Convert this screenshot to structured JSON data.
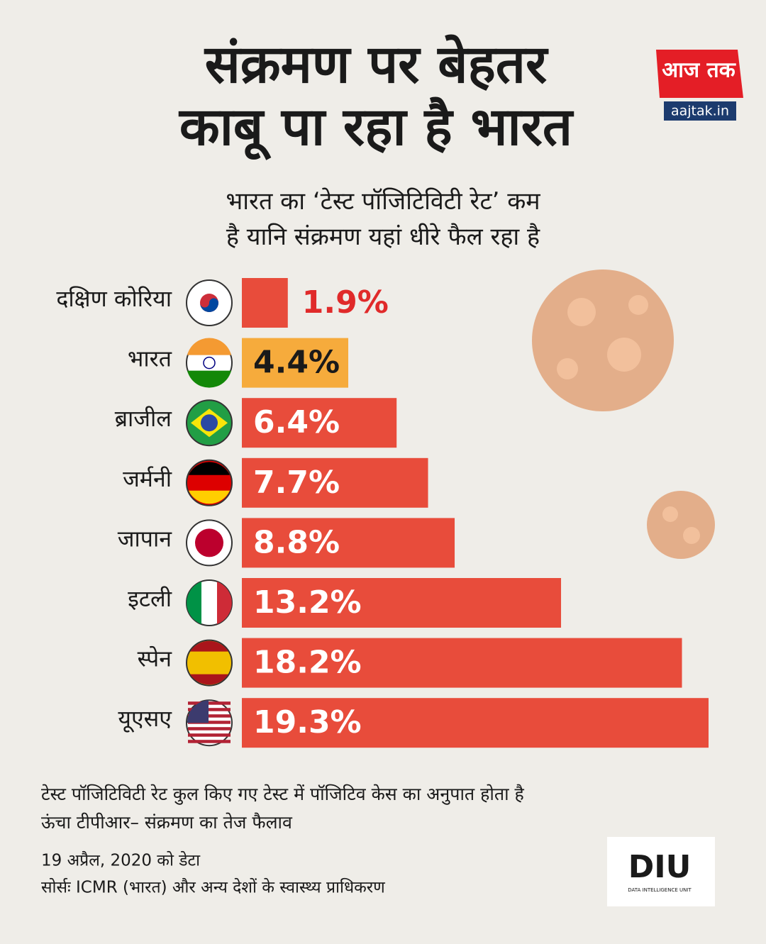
{
  "chart_data": {
    "type": "bar",
    "orientation": "horizontal",
    "title": "संक्रमण पर बेहतर काबू पा रहा है भारत",
    "subtitle": "भारत का ‘टेस्ट पॉजिटिविटी रेट’ कम है यानि संक्रमण यहां धीरे फैल रहा है",
    "categories": [
      "दक्षिण कोरिया",
      "भारत",
      "ब्राजील",
      "जर्मनी",
      "जापान",
      "इटली",
      "स्पेन",
      "यूएसए"
    ],
    "values": [
      1.9,
      4.4,
      6.4,
      7.7,
      8.8,
      13.2,
      18.2,
      19.3
    ],
    "value_labels": [
      "1.9%",
      "4.4%",
      "6.4%",
      "7.7%",
      "8.8%",
      "13.2%",
      "18.2%",
      "19.3%"
    ],
    "colors": [
      "#e84c3b",
      "#f6ab3c",
      "#e84c3b",
      "#e84c3b",
      "#e84c3b",
      "#e84c3b",
      "#e84c3b",
      "#e84c3b"
    ],
    "value_label_colors": [
      "#e02a2a",
      "#1a1a1a",
      "#ffffff",
      "#ffffff",
      "#ffffff",
      "#ffffff",
      "#ffffff",
      "#ffffff"
    ],
    "notes": [
      "टेस्ट पॉजिटिविटी रेट कुल किए गए टेस्ट में पॉजिटिव केस का अनुपात होता है",
      "ऊंचा टीपीआर– संक्रमण का तेज फैलाव"
    ],
    "date": "19 अप्रैल, 2020 को डेटा",
    "source": "सोर्सः ICMR (भारत) और अन्य देशों के स्वास्थ्य प्राधिकरण"
  },
  "branding": {
    "logo": "आज तक",
    "site": "aajtak.in",
    "unit": "DIU",
    "unit_full": "DATA INTELLIGENCE UNIT"
  }
}
